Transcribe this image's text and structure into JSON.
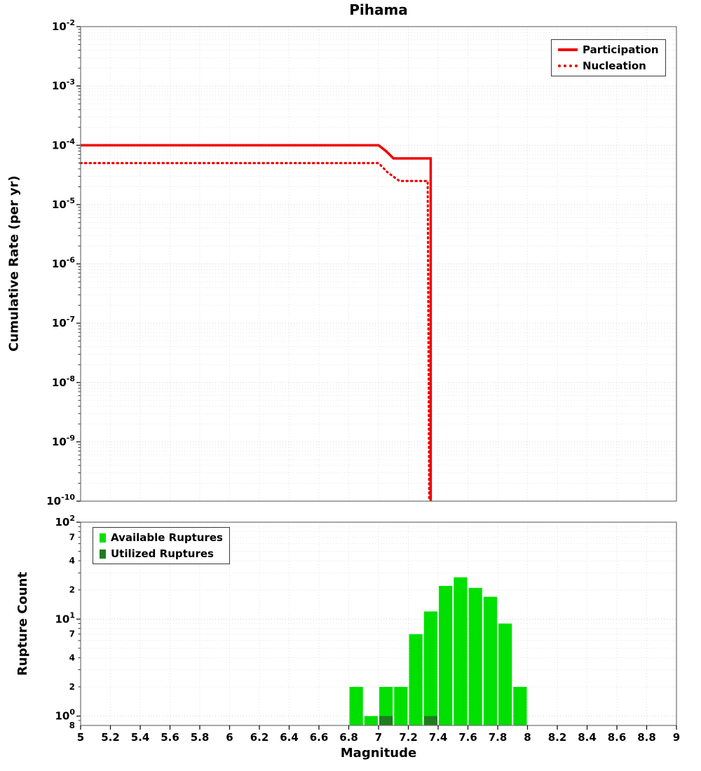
{
  "chart_data": [
    {
      "type": "line",
      "panel": "top",
      "title": "Pihama",
      "xlabel": "Magnitude",
      "ylabel": "Cumulative Rate (per yr)",
      "xlim": [
        5,
        9
      ],
      "yscale": "log",
      "ylim": [
        1e-10,
        0.01
      ],
      "y_tick_exponents": [
        -2,
        -3,
        -4,
        -5,
        -6,
        -7,
        -8,
        -9,
        -10
      ],
      "grid": true,
      "legend_position": "top-right",
      "series": [
        {
          "name": "Participation",
          "style": "solid",
          "color": "#ee0000",
          "points": [
            [
              5.0,
              0.0001
            ],
            [
              7.0,
              0.0001
            ],
            [
              7.05,
              8e-05
            ],
            [
              7.1,
              6e-05
            ],
            [
              7.35,
              6e-05
            ],
            [
              7.35,
              1e-10
            ]
          ]
        },
        {
          "name": "Nucleation",
          "style": "dotted",
          "color": "#ee0000",
          "points": [
            [
              5.0,
              5e-05
            ],
            [
              7.0,
              5e-05
            ],
            [
              7.06,
              3.5e-05
            ],
            [
              7.14,
              2.5e-05
            ],
            [
              7.33,
              2.5e-05
            ],
            [
              7.34,
              1e-10
            ]
          ]
        }
      ]
    },
    {
      "type": "bar",
      "panel": "bottom",
      "xlabel": "Magnitude",
      "ylabel": "Rupture Count",
      "xlim": [
        5,
        9
      ],
      "yscale": "log",
      "ylim": [
        0.8,
        100
      ],
      "grid": true,
      "legend_position": "top-left",
      "bin_width": 0.1,
      "x_ticks": [
        5,
        5.2,
        5.4,
        5.6,
        5.8,
        6,
        6.2,
        6.4,
        6.6,
        6.8,
        7,
        7.2,
        7.4,
        7.6,
        7.8,
        8,
        8.2,
        8.4,
        8.6,
        8.8,
        9
      ],
      "y_tick_exponents": [
        2,
        1,
        0
      ],
      "y_minor_tick_labels": [
        {
          "value": 70,
          "text": "7"
        },
        {
          "value": 40,
          "text": "4"
        },
        {
          "value": 20,
          "text": "2"
        },
        {
          "value": 7,
          "text": "7"
        },
        {
          "value": 4,
          "text": "4"
        },
        {
          "value": 2,
          "text": "2"
        },
        {
          "value": 0.8,
          "text": "8"
        }
      ],
      "categories": [
        6.85,
        6.95,
        7.05,
        7.15,
        7.25,
        7.35,
        7.45,
        7.55,
        7.65,
        7.75,
        7.85,
        7.95
      ],
      "series": [
        {
          "name": "Available Ruptures",
          "color": "#00e000",
          "values": [
            2,
            1,
            2,
            2,
            7,
            12,
            22,
            27,
            21,
            17,
            9,
            2
          ]
        },
        {
          "name": "Utilized Ruptures",
          "color": "#1e7d1e",
          "values": [
            0,
            0,
            1,
            0,
            0,
            1,
            0,
            0,
            0,
            0,
            0,
            0
          ]
        }
      ]
    }
  ]
}
